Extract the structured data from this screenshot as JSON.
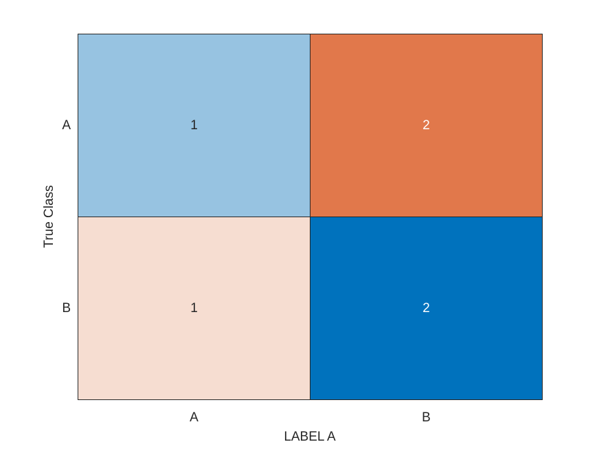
{
  "chart_data": {
    "type": "heatmap",
    "title": "",
    "xlabel": "LABEL A",
    "ylabel": "True Class",
    "x_categories": [
      "A",
      "B"
    ],
    "y_categories": [
      "A",
      "B"
    ],
    "values": [
      [
        1,
        2
      ],
      [
        1,
        2
      ]
    ],
    "cell_colors": [
      [
        "#97c3e1",
        "#e1784b"
      ],
      [
        "#f6ddd1",
        "#0072bd"
      ]
    ],
    "text_colors": [
      [
        "#262626",
        "#ffffff"
      ],
      [
        "#262626",
        "#ffffff"
      ]
    ]
  }
}
